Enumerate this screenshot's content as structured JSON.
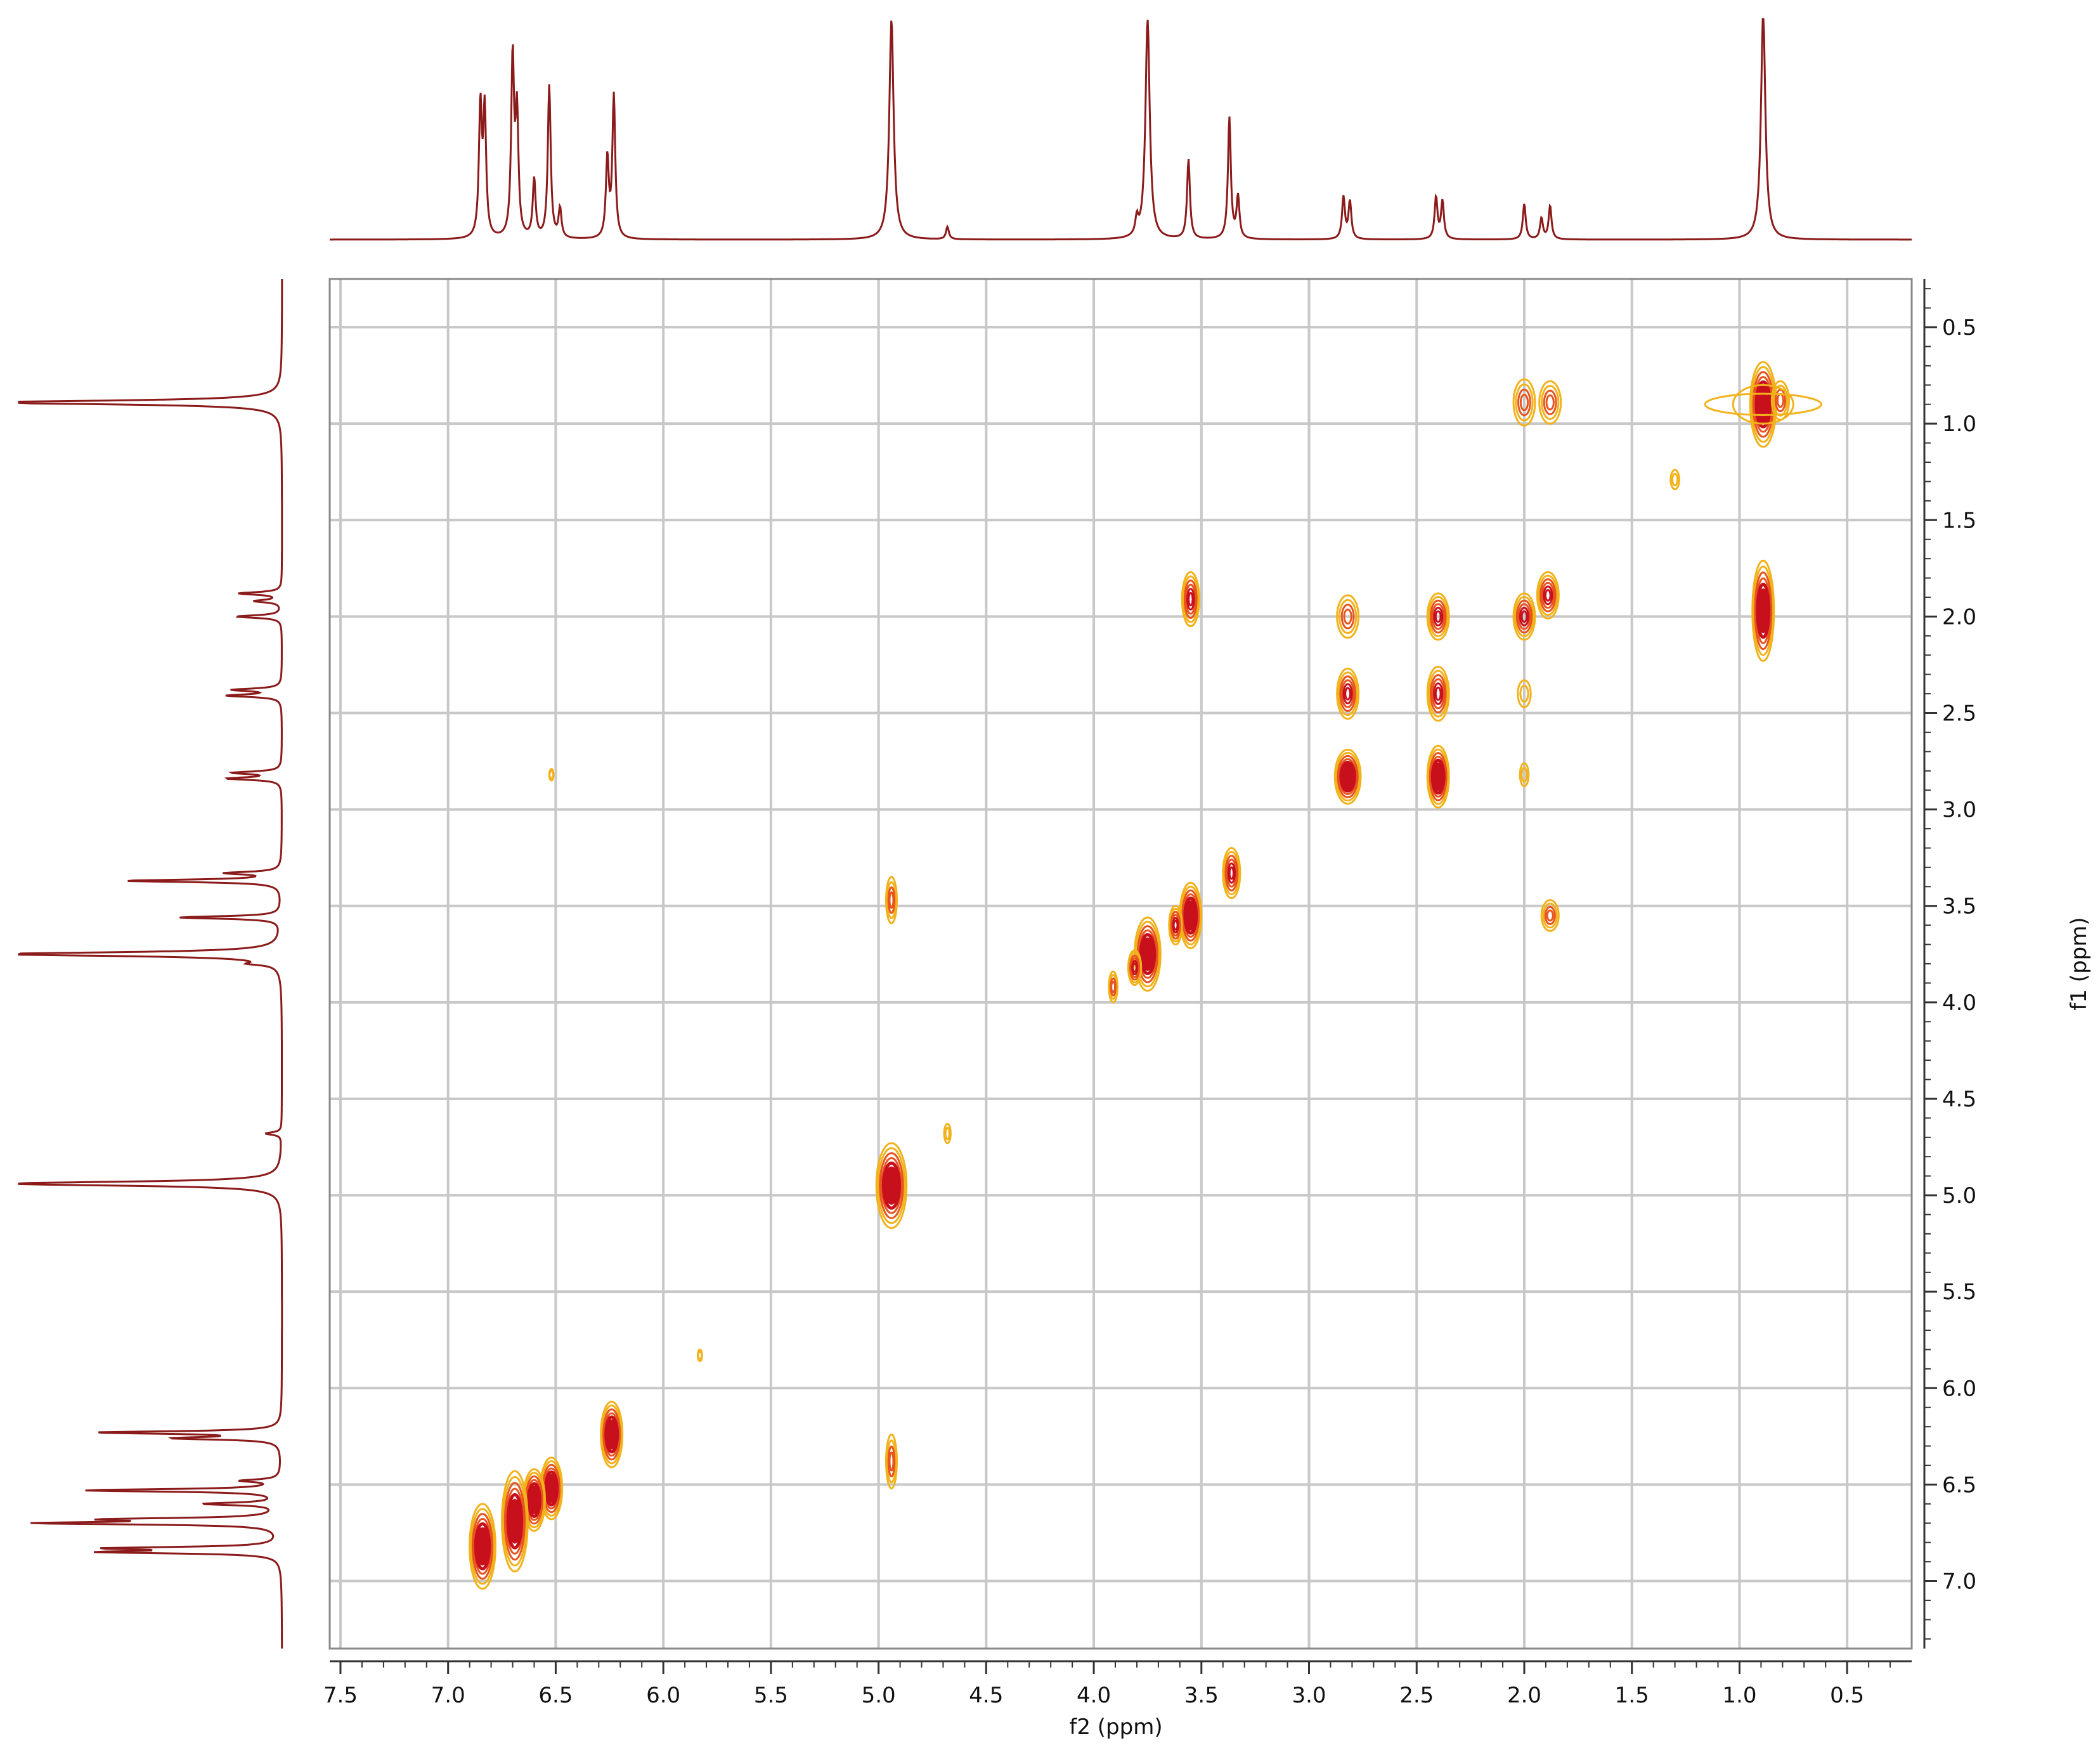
{
  "chart_data": {
    "type": "contour",
    "xlabel": "f2 (ppm)",
    "ylabel": "f1 (ppm)",
    "x_axis_reversed": true,
    "y_axis_reversed": true,
    "xlim": [
      7.55,
      0.2
    ],
    "ylim": [
      0.25,
      7.35
    ],
    "x_ticks": [
      "7.5",
      "7.0",
      "6.5",
      "6.0",
      "5.5",
      "5.0",
      "4.5",
      "4.0",
      "3.5",
      "3.0",
      "2.5",
      "2.0",
      "1.5",
      "1.0",
      "0.5"
    ],
    "y_ticks": [
      "0.5",
      "1.0",
      "1.5",
      "2.0",
      "2.5",
      "3.0",
      "3.5",
      "4.0",
      "4.5",
      "5.0",
      "5.5",
      "6.0",
      "6.5",
      "7.0"
    ],
    "grid": true,
    "colors": {
      "spectrum": "#8b1a1a",
      "contour_outer": "#f2b21b",
      "contour_inner": "#e8541e",
      "contour_core": "#c8101d",
      "grid": "#c8c8c8"
    },
    "projection_peaks": [
      {
        "ppm": 6.85,
        "height": 0.62
      },
      {
        "ppm": 6.83,
        "height": 0.6
      },
      {
        "ppm": 6.7,
        "height": 0.86
      },
      {
        "ppm": 6.68,
        "height": 0.58
      },
      {
        "ppm": 6.6,
        "height": 0.28
      },
      {
        "ppm": 6.53,
        "height": 0.73
      },
      {
        "ppm": 6.48,
        "height": 0.14
      },
      {
        "ppm": 6.26,
        "height": 0.38
      },
      {
        "ppm": 6.23,
        "height": 0.68
      },
      {
        "ppm": 4.94,
        "height": 1.05
      },
      {
        "ppm": 4.68,
        "height": 0.06
      },
      {
        "ppm": 3.8,
        "height": 0.08
      },
      {
        "ppm": 3.75,
        "height": 1.05
      },
      {
        "ppm": 3.56,
        "height": 0.38
      },
      {
        "ppm": 3.37,
        "height": 0.58
      },
      {
        "ppm": 3.33,
        "height": 0.2
      },
      {
        "ppm": 2.84,
        "height": 0.2
      },
      {
        "ppm": 2.81,
        "height": 0.18
      },
      {
        "ppm": 2.41,
        "height": 0.2
      },
      {
        "ppm": 2.38,
        "height": 0.18
      },
      {
        "ppm": 2.0,
        "height": 0.17
      },
      {
        "ppm": 1.92,
        "height": 0.1
      },
      {
        "ppm": 1.88,
        "height": 0.16
      },
      {
        "ppm": 0.89,
        "height": 1.1
      }
    ],
    "contour_peaks": [
      {
        "x": 0.89,
        "y": 0.9,
        "w": 0.06,
        "h": 0.22,
        "level": 3
      },
      {
        "x": 0.81,
        "y": 0.88,
        "w": 0.04,
        "h": 0.1,
        "level": 1
      },
      {
        "x": 2.0,
        "y": 0.89,
        "w": 0.05,
        "h": 0.12,
        "level": 1
      },
      {
        "x": 1.88,
        "y": 0.89,
        "w": 0.05,
        "h": 0.11,
        "level": 1
      },
      {
        "x": 1.3,
        "y": 1.29,
        "w": 0.02,
        "h": 0.05,
        "level": 0
      },
      {
        "x": 0.89,
        "y": 1.97,
        "w": 0.05,
        "h": 0.26,
        "level": 3
      },
      {
        "x": 3.55,
        "y": 1.91,
        "w": 0.04,
        "h": 0.14,
        "level": 2
      },
      {
        "x": 2.82,
        "y": 2.0,
        "w": 0.05,
        "h": 0.11,
        "level": 1
      },
      {
        "x": 2.4,
        "y": 2.0,
        "w": 0.05,
        "h": 0.12,
        "level": 2
      },
      {
        "x": 2.0,
        "y": 2.0,
        "w": 0.05,
        "h": 0.12,
        "level": 2
      },
      {
        "x": 1.89,
        "y": 1.89,
        "w": 0.05,
        "h": 0.12,
        "level": 2
      },
      {
        "x": 2.0,
        "y": 2.4,
        "w": 0.03,
        "h": 0.07,
        "level": 0
      },
      {
        "x": 2.82,
        "y": 2.4,
        "w": 0.05,
        "h": 0.13,
        "level": 2
      },
      {
        "x": 2.4,
        "y": 2.4,
        "w": 0.05,
        "h": 0.14,
        "level": 2
      },
      {
        "x": 2.82,
        "y": 2.83,
        "w": 0.06,
        "h": 0.14,
        "level": 3
      },
      {
        "x": 2.4,
        "y": 2.83,
        "w": 0.05,
        "h": 0.16,
        "level": 3
      },
      {
        "x": 2.0,
        "y": 2.82,
        "w": 0.02,
        "h": 0.06,
        "level": 0
      },
      {
        "x": 1.88,
        "y": 3.55,
        "w": 0.04,
        "h": 0.08,
        "level": 1
      },
      {
        "x": 4.94,
        "y": 3.47,
        "w": 0.025,
        "h": 0.12,
        "level": 1
      },
      {
        "x": 3.36,
        "y": 3.33,
        "w": 0.04,
        "h": 0.13,
        "level": 2
      },
      {
        "x": 3.55,
        "y": 3.55,
        "w": 0.05,
        "h": 0.17,
        "level": 3
      },
      {
        "x": 3.62,
        "y": 3.6,
        "w": 0.03,
        "h": 0.1,
        "level": 2
      },
      {
        "x": 3.75,
        "y": 3.75,
        "w": 0.06,
        "h": 0.19,
        "level": 3
      },
      {
        "x": 3.81,
        "y": 3.82,
        "w": 0.03,
        "h": 0.09,
        "level": 2
      },
      {
        "x": 3.91,
        "y": 3.92,
        "w": 0.02,
        "h": 0.08,
        "level": 1
      },
      {
        "x": 4.68,
        "y": 4.68,
        "w": 0.015,
        "h": 0.05,
        "level": 0
      },
      {
        "x": 4.94,
        "y": 4.95,
        "w": 0.07,
        "h": 0.22,
        "level": 3
      },
      {
        "x": 5.83,
        "y": 5.83,
        "w": 0.01,
        "h": 0.03,
        "level": 0
      },
      {
        "x": 6.52,
        "y": 2.82,
        "w": 0.01,
        "h": 0.03,
        "level": 0
      },
      {
        "x": 4.94,
        "y": 6.38,
        "w": 0.025,
        "h": 0.14,
        "level": 1
      },
      {
        "x": 6.24,
        "y": 6.24,
        "w": 0.05,
        "h": 0.17,
        "level": 3
      },
      {
        "x": 6.52,
        "y": 6.52,
        "w": 0.05,
        "h": 0.16,
        "level": 3
      },
      {
        "x": 6.6,
        "y": 6.58,
        "w": 0.05,
        "h": 0.16,
        "level": 3
      },
      {
        "x": 6.69,
        "y": 6.69,
        "w": 0.06,
        "h": 0.26,
        "level": 3
      },
      {
        "x": 6.84,
        "y": 6.82,
        "w": 0.06,
        "h": 0.22,
        "level": 3
      }
    ]
  }
}
